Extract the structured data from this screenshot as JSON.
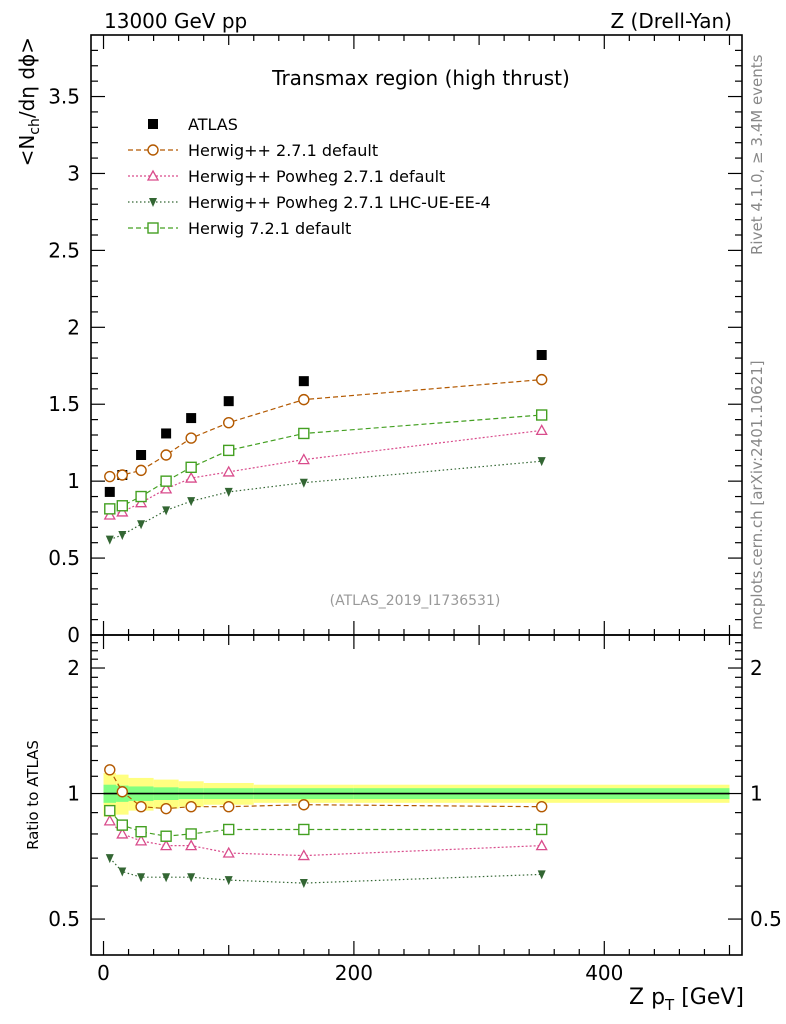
{
  "header": {
    "left": "13000 GeV pp",
    "right": "Z (Drell-Yan)"
  },
  "side_text": {
    "rivet": "Rivet 4.1.0, ≥ 3.4M events",
    "mcplots": "mcplots.cern.ch [arXiv:2401.10621]"
  },
  "watermark": "(ATLAS_2019_I1736531)",
  "colors": {
    "atlas": "#000000",
    "herwig271": "#b35900",
    "powheg": "#d94c8c",
    "lhcue": "#336633",
    "herwig721": "#44a022",
    "band_inner": "#80ff80",
    "band_outer": "#ffff80"
  },
  "chart_data": [
    {
      "type": "line",
      "title": "Transmax region (high thrust)",
      "ylabel_main": "<N",
      "ylabel_sub": "ch",
      "ylabel_rest": "/dη dϕ>",
      "xlim": [
        -10,
        510
      ],
      "ylim": [
        0,
        3.9
      ],
      "yticks": [
        0,
        0.5,
        1,
        1.5,
        2,
        2.5,
        3,
        3.5
      ],
      "ytick_labels": [
        "0",
        "0.5",
        "1",
        "1.5",
        "2",
        "2.5",
        "3",
        "3.5"
      ],
      "x": [
        5,
        15,
        30,
        50,
        70,
        100,
        160,
        350
      ],
      "series": [
        {
          "name": "ATLAS",
          "marker": "square-filled",
          "values": [
            0.93,
            1.04,
            1.17,
            1.31,
            1.41,
            1.52,
            1.65,
            1.82
          ]
        },
        {
          "name": "Herwig++ 2.7.1 default",
          "marker": "circle-open",
          "values": [
            1.03,
            1.04,
            1.07,
            1.17,
            1.28,
            1.38,
            1.53,
            1.66
          ]
        },
        {
          "name": "Herwig++ Powheg 2.7.1 default",
          "marker": "triangle-open",
          "values": [
            0.78,
            0.8,
            0.86,
            0.95,
            1.02,
            1.06,
            1.14,
            1.33
          ]
        },
        {
          "name": "Herwig++ Powheg 2.7.1 LHC-UE-EE-4",
          "marker": "triangle-down-filled",
          "values": [
            0.62,
            0.65,
            0.72,
            0.81,
            0.87,
            0.93,
            0.99,
            1.13
          ]
        },
        {
          "name": "Herwig 7.2.1 default",
          "marker": "square-open",
          "values": [
            0.82,
            0.84,
            0.9,
            1.0,
            1.09,
            1.2,
            1.31,
            1.43
          ]
        }
      ]
    },
    {
      "type": "line",
      "ylabel": "Ratio to ATLAS",
      "xlabel_main": "Z p",
      "xlabel_sub": "T",
      "xlabel_rest": " [GeV]",
      "xlim": [
        -10,
        510
      ],
      "ylim": [
        0.41,
        2.4
      ],
      "yscale": "log",
      "yticks": [
        0.5,
        1,
        2
      ],
      "ytick_labels": [
        "0.5",
        "1",
        "2"
      ],
      "xticks": [
        0,
        200,
        400
      ],
      "xtick_labels": [
        "0",
        "200",
        "400"
      ],
      "x": [
        5,
        15,
        30,
        50,
        70,
        100,
        160,
        350
      ],
      "bands": {
        "x_edges": [
          0,
          10,
          20,
          40,
          60,
          80,
          120,
          200,
          500
        ],
        "inner_halfwidth": [
          0.05,
          0.045,
          0.04,
          0.035,
          0.03,
          0.03,
          0.03,
          0.03
        ],
        "outer_halfwidth": [
          0.12,
          0.11,
          0.09,
          0.08,
          0.07,
          0.06,
          0.05,
          0.05
        ]
      },
      "series": [
        {
          "name": "Herwig++ 2.7.1 default",
          "marker": "circle-open",
          "values": [
            1.14,
            1.01,
            0.93,
            0.92,
            0.93,
            0.93,
            0.94,
            0.93
          ]
        },
        {
          "name": "Herwig++ Powheg 2.7.1 default",
          "marker": "triangle-open",
          "values": [
            0.86,
            0.8,
            0.77,
            0.75,
            0.75,
            0.72,
            0.71,
            0.75
          ]
        },
        {
          "name": "Herwig++ Powheg 2.7.1 LHC-UE-EE-4",
          "marker": "triangle-down-filled",
          "values": [
            0.7,
            0.65,
            0.63,
            0.63,
            0.63,
            0.62,
            0.61,
            0.64
          ]
        },
        {
          "name": "Herwig 7.2.1 default",
          "marker": "square-open",
          "values": [
            0.91,
            0.84,
            0.81,
            0.79,
            0.8,
            0.82,
            0.82,
            0.82
          ]
        }
      ]
    }
  ]
}
